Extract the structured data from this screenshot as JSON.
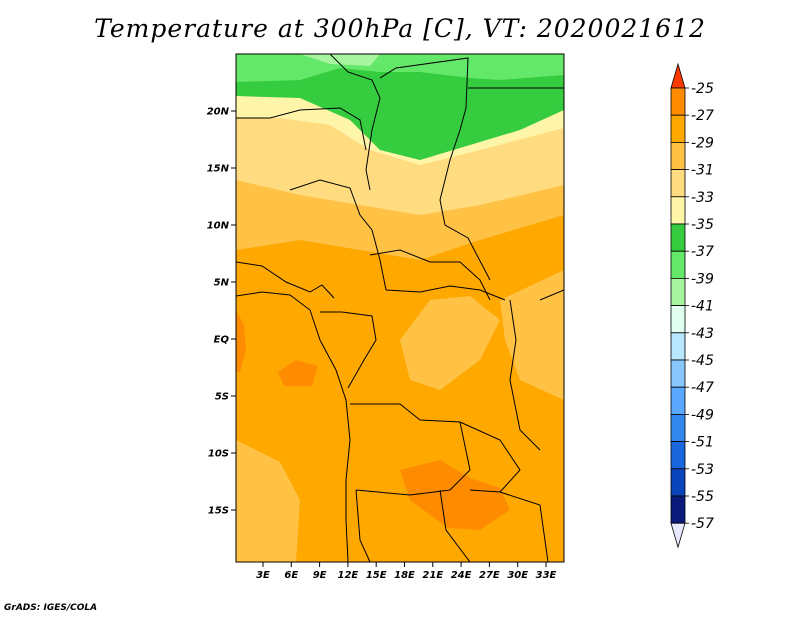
{
  "title": "Temperature at 300hPa [C], VT: 2020021612",
  "credit": "GrADS: IGES/COLA",
  "map": {
    "lat_labels": [
      "20N",
      "15N",
      "10N",
      "5N",
      "EQ",
      "5S",
      "10S",
      "15S"
    ],
    "lon_labels": [
      "3E",
      "6E",
      "9E",
      "12E",
      "15E",
      "18E",
      "21E",
      "24E",
      "27E",
      "30E",
      "33E"
    ]
  },
  "colorbar": {
    "labels": [
      "-25",
      "-27",
      "-29",
      "-31",
      "-33",
      "-35",
      "-37",
      "-39",
      "-41",
      "-43",
      "-45",
      "-47",
      "-49",
      "-51",
      "-53",
      "-55",
      "-57"
    ],
    "colors": [
      "#ff5a00",
      "#ff8c00",
      "#ffa800",
      "#ffc245",
      "#ffdc80",
      "#fff5a8",
      "#35cc40",
      "#63e86a",
      "#a8f5a0",
      "#e0fff0",
      "#b8e6ff",
      "#88c8ff",
      "#5aa8ff",
      "#3388ee",
      "#1a66dd",
      "#0a44bb",
      "#0a1a7a"
    ],
    "arrow_top_color": "#ff3a00",
    "arrow_bottom_color": "#e8e8ff"
  },
  "field_colors": {
    "c27": "#ff8c00",
    "c29": "#ffa800",
    "c31": "#ffc245",
    "c33": "#ffdc80",
    "c35": "#fff5a8",
    "c37": "#35cc40",
    "c39": "#63e86a",
    "c41": "#a8f5a0"
  }
}
